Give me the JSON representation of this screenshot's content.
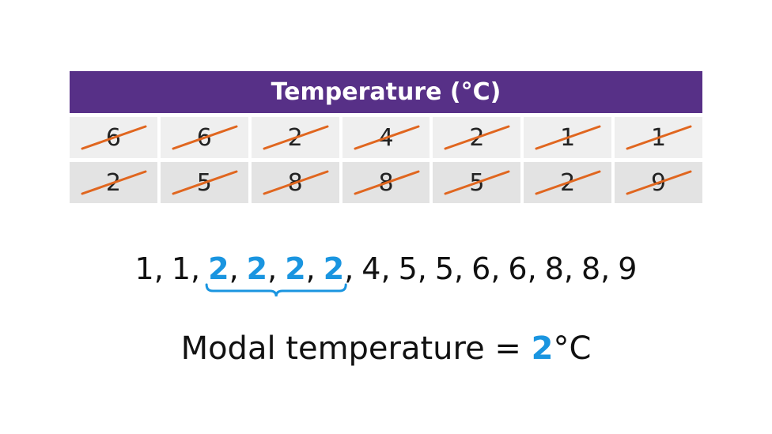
{
  "table": {
    "title": "Temperature (°C)",
    "rows": [
      [
        6,
        6,
        2,
        4,
        2,
        1,
        1
      ],
      [
        2,
        5,
        8,
        8,
        5,
        2,
        9
      ]
    ],
    "header_color": "#573087",
    "crossed_out": true,
    "cross_color": "#e0661f"
  },
  "sorted": {
    "items": [
      "1",
      "1",
      "2",
      "2",
      "2",
      "2",
      "4",
      "5",
      "5",
      "6",
      "6",
      "8",
      "8",
      "9"
    ],
    "separator": ",",
    "highlight": [
      2,
      3,
      4,
      5
    ],
    "highlight_color": "#1a95e0"
  },
  "result": {
    "label": "Modal temperature =",
    "value": "2",
    "unit": "°C"
  }
}
